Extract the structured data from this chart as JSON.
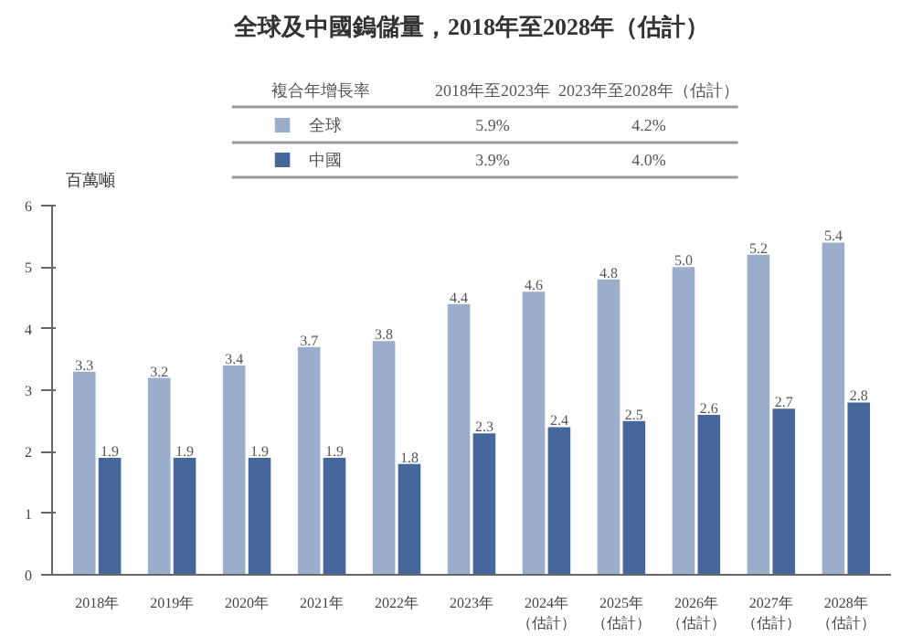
{
  "chart_data": {
    "type": "bar",
    "title": "全球及中國鎢儲量，2018年至2028年（估計）",
    "ylabel": "百萬噸",
    "categories": [
      "2018年",
      "2019年",
      "2020年",
      "2021年",
      "2022年",
      "2023年",
      "2024年（估計）",
      "2025年（估計）",
      "2026年（估計）",
      "2027年（估計）",
      "2028年（估計）"
    ],
    "series": [
      {
        "name": "全球",
        "color": "#9aaecb",
        "values": [
          3.3,
          3.2,
          3.4,
          3.7,
          3.8,
          4.4,
          4.6,
          4.8,
          5.0,
          5.2,
          5.4
        ],
        "value_labels": [
          "3.3",
          "3.2",
          "3.4",
          "3.7",
          "3.8",
          "4.4",
          "4.6",
          "4.8",
          "5.0",
          "5.2",
          "5.4"
        ]
      },
      {
        "name": "中國",
        "color": "#45679b",
        "values": [
          1.9,
          1.9,
          1.9,
          1.9,
          1.8,
          2.3,
          2.4,
          2.5,
          2.6,
          2.7,
          2.8
        ],
        "value_labels": [
          "1.9",
          "1.9",
          "1.9",
          "1.9",
          "1.8",
          "2.3",
          "2.4",
          "2.5",
          "2.6",
          "2.7",
          "2.8"
        ]
      }
    ],
    "annotations": [
      "複合年增長率",
      "2018年至2023年",
      "2023年至2028年（估計）",
      "5.9%",
      "4.2%",
      "3.9%",
      "4.0%"
    ],
    "ylim": [
      0,
      6
    ],
    "yticks": [
      0,
      1,
      2,
      3,
      4,
      5,
      6
    ],
    "grid": false,
    "legend": "top"
  }
}
